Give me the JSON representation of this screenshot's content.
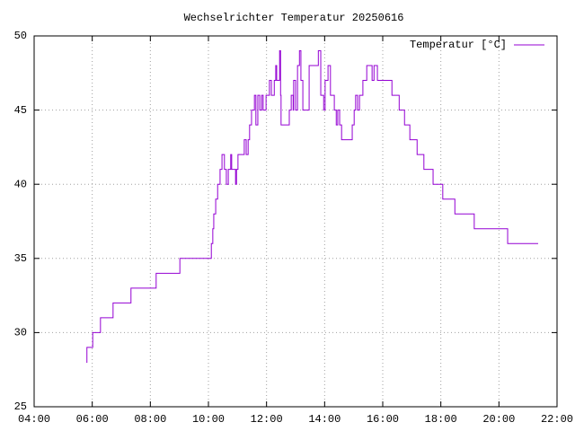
{
  "chart_data": {
    "type": "line",
    "style": "steps",
    "title": "Wechselrichter Temperatur 20250616",
    "x": [
      "05:48",
      "05:49",
      "06:01",
      "06:17",
      "06:43",
      "07:20",
      "08:12",
      "09:01",
      "10:06",
      "10:09",
      "10:11",
      "10:15",
      "10:19",
      "10:24",
      "10:28",
      "10:33",
      "10:37",
      "10:41",
      "10:46",
      "10:48",
      "10:56",
      "10:58",
      "11:01",
      "11:14",
      "11:18",
      "11:22",
      "11:25",
      "11:29",
      "11:35",
      "11:38",
      "11:42",
      "11:46",
      "11:50",
      "11:53",
      "11:59",
      "12:06",
      "12:10",
      "12:16",
      "12:19",
      "12:21",
      "12:27",
      "12:29",
      "12:30",
      "12:47",
      "12:51",
      "12:55",
      "12:56",
      "13:00",
      "13:04",
      "13:08",
      "13:11",
      "13:15",
      "13:28",
      "13:47",
      "13:52",
      "13:58",
      "14:01",
      "14:07",
      "14:12",
      "14:20",
      "14:24",
      "14:27",
      "14:31",
      "14:35",
      "14:57",
      "15:01",
      "15:04",
      "15:08",
      "15:12",
      "15:19",
      "15:27",
      "15:38",
      "15:42",
      "15:49",
      "16:19",
      "16:34",
      "16:45",
      "16:56",
      "17:11",
      "17:25",
      "17:44",
      "18:04",
      "18:29",
      "19:09",
      "20:18",
      "21:21"
    ],
    "series": [
      {
        "name": "Temperatur [°C]",
        "color": "#9400d3",
        "values": [
          28,
          29,
          30,
          31,
          32,
          33,
          34,
          35,
          36,
          37,
          38,
          39,
          40,
          41,
          42,
          41,
          40,
          41,
          42,
          41,
          40,
          41,
          42,
          43,
          42,
          43,
          44,
          45,
          46,
          44,
          46,
          45,
          46,
          45,
          46,
          47,
          46,
          47,
          48,
          47,
          49,
          46,
          44,
          45,
          46,
          45,
          47,
          45,
          48,
          49,
          47,
          45,
          48,
          49,
          46,
          45,
          47,
          48,
          46,
          45,
          44,
          45,
          44,
          43,
          44,
          45,
          46,
          45,
          46,
          47,
          48,
          47,
          48,
          47,
          46,
          45,
          44,
          43,
          42,
          41,
          40,
          39,
          38,
          37,
          36,
          36
        ]
      }
    ],
    "xlim": [
      "04:00",
      "22:00"
    ],
    "xticks": [
      "04:00",
      "06:00",
      "08:00",
      "10:00",
      "12:00",
      "14:00",
      "16:00",
      "18:00",
      "20:00",
      "22:00"
    ],
    "ylim": [
      25,
      50
    ],
    "yticks": [
      25,
      30,
      35,
      40,
      45,
      50
    ],
    "grid": true,
    "legend": "top-right"
  }
}
